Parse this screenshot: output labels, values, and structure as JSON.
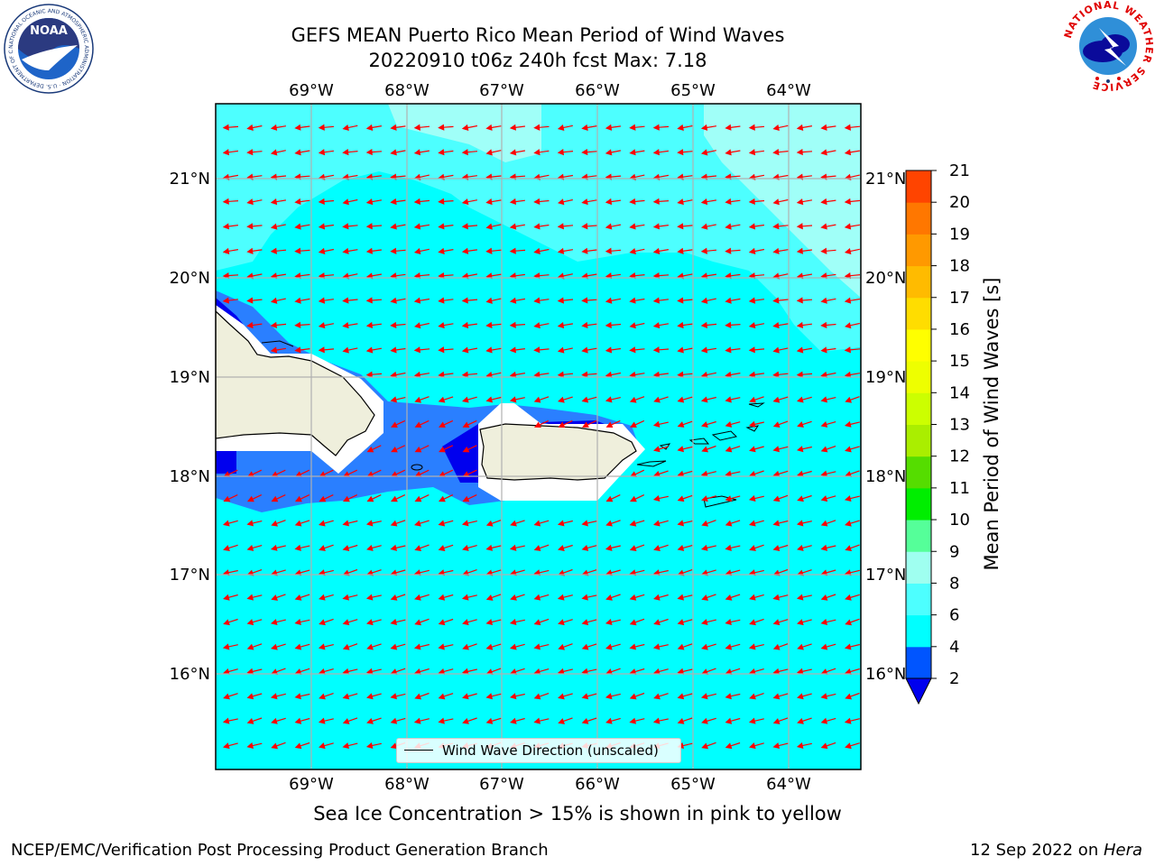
{
  "header": {
    "title_line1": "GEFS MEAN Puerto Rico Mean Period of Wind Waves",
    "title_line2": "20220910 t06z 240h fcst   Max: 7.18"
  },
  "logos": {
    "left": "NOAA",
    "left_ring": "NATIONAL OCEANIC AND ATMOSPHERIC ADMINISTRATION · U.S. DEPARTMENT OF COMMERCE",
    "right_ring": "NATIONAL WEATHER SERVICE"
  },
  "map": {
    "lon_labels": [
      "69°W",
      "68°W",
      "67°W",
      "66°W",
      "65°W",
      "64°W"
    ],
    "lat_labels": [
      "21°N",
      "20°N",
      "19°N",
      "18°N",
      "17°N",
      "16°N"
    ],
    "colors": {
      "ocean_main": "#00ffff",
      "ocean_light": "#4dffff",
      "ocean_lighter": "#a0fff8",
      "shallow": "#2a7fff",
      "deep": "#0000ee",
      "land": "#efefdc",
      "arrow": "#ff0000"
    },
    "legend_label": "Wind Wave Direction (unscaled)"
  },
  "colorbar": {
    "label": "Mean Period of Wind Waves [s]",
    "ticks": [
      "2",
      "4",
      "6",
      "8",
      "9",
      "10",
      "11",
      "12",
      "13",
      "14",
      "15",
      "16",
      "17",
      "18",
      "19",
      "20",
      "21"
    ],
    "colors": [
      "#0055ff",
      "#00ffff",
      "#4dffff",
      "#9ffff0",
      "#55ff99",
      "#00ee00",
      "#55dd00",
      "#aaee00",
      "#ccff00",
      "#eeff00",
      "#ffff00",
      "#ffdd00",
      "#ffbb00",
      "#ff9900",
      "#ff7700",
      "#ff4400",
      "#ff0000"
    ],
    "under_color": "#0000ee"
  },
  "caption": "Sea Ice Concentration > 15% is shown in pink to yellow",
  "footer": {
    "left": "NCEP/EMC/Verification Post Processing Product Generation Branch",
    "right_date": "12 Sep 2022 on ",
    "right_host": "Hera"
  }
}
